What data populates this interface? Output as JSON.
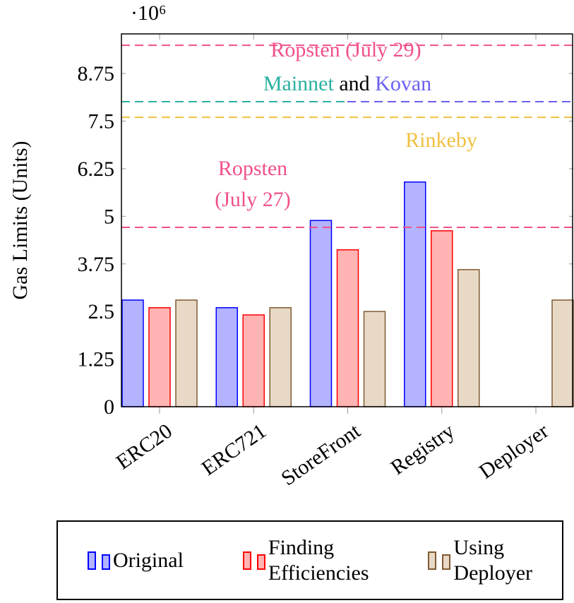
{
  "chart_data": {
    "type": "bar",
    "y_label": "Gas Limits (Units)",
    "y_multiplier": "·10⁶",
    "categories": [
      "ERC20",
      "ERC721",
      "StoreFront",
      "Registry",
      "Deployer"
    ],
    "series": [
      {
        "name": "Original",
        "color": "#0000ff",
        "fill": "#b3b3ff",
        "values": [
          2.8,
          2.6,
          4.89,
          5.9,
          0
        ]
      },
      {
        "name": "Finding Efficiencies",
        "color": "#ff0000",
        "fill": "#ffb3b3",
        "values": [
          2.6,
          2.41,
          4.12,
          4.62,
          0
        ]
      },
      {
        "name": "Using Deployer",
        "color": "#7f5a33",
        "fill": "#e8d9c6",
        "values": [
          2.8,
          2.6,
          2.5,
          3.6,
          2.8
        ]
      }
    ],
    "ylim": [
      0,
      9.79
    ],
    "yticks": [
      0,
      1.25,
      2.5,
      3.75,
      5,
      6.25,
      7.5,
      8.75
    ],
    "reference_lines": [
      {
        "value": 9.49,
        "colors": [
          "#f0508c"
        ],
        "labels": [
          {
            "text": "Ropsten (July 29)",
            "color": "#f0508c"
          }
        ]
      },
      {
        "value": 8.01,
        "colors": [
          "#2ab0a0",
          "#6a5ff0"
        ],
        "labels": [
          {
            "text": "Mainnet",
            "color": "#2ab0a0"
          },
          {
            "text": "and",
            "color": "#000000"
          },
          {
            "text": "Kovan",
            "color": "#6a5ff0"
          }
        ]
      },
      {
        "value": 7.6,
        "colors": [
          "#f0c040"
        ],
        "labels": [
          {
            "text": "Rinkeby",
            "color": "#f0c040"
          }
        ]
      },
      {
        "value": 4.71,
        "colors": [
          "#f0508c"
        ],
        "labels": [
          {
            "text": "Ropsten",
            "color": "#f0508c"
          },
          {
            "text": "(July 27)",
            "color": "#f0508c"
          }
        ]
      }
    ]
  }
}
